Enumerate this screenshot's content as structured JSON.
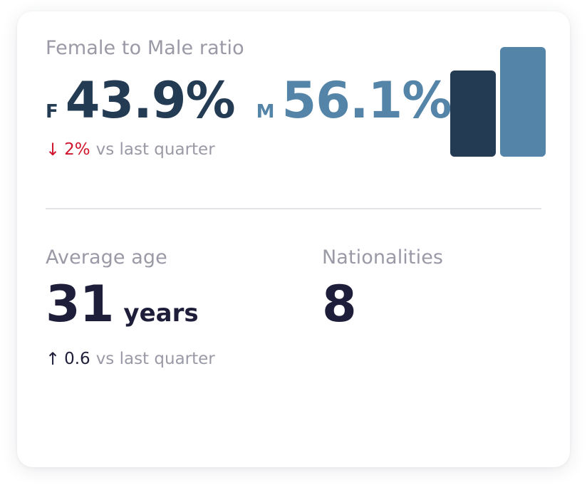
{
  "ratio": {
    "title": "Female to Male ratio",
    "female_letter": "F",
    "female_value": "43.9%",
    "male_letter": "M",
    "male_value": "56.1%",
    "female_fraction": 0.439,
    "male_fraction": 0.561,
    "female_color": "#243b54",
    "male_color": "#5485a8",
    "change_arrow": "↓",
    "change_value": "2%",
    "change_text": "vs last quarter",
    "change_color": "#d0142c"
  },
  "age": {
    "title": "Average age",
    "value": "31",
    "unit": "years",
    "change_arrow": "↑",
    "change_value": "0.6",
    "change_text": "vs last quarter"
  },
  "nationalities": {
    "title": "Nationalities",
    "value": "8"
  }
}
